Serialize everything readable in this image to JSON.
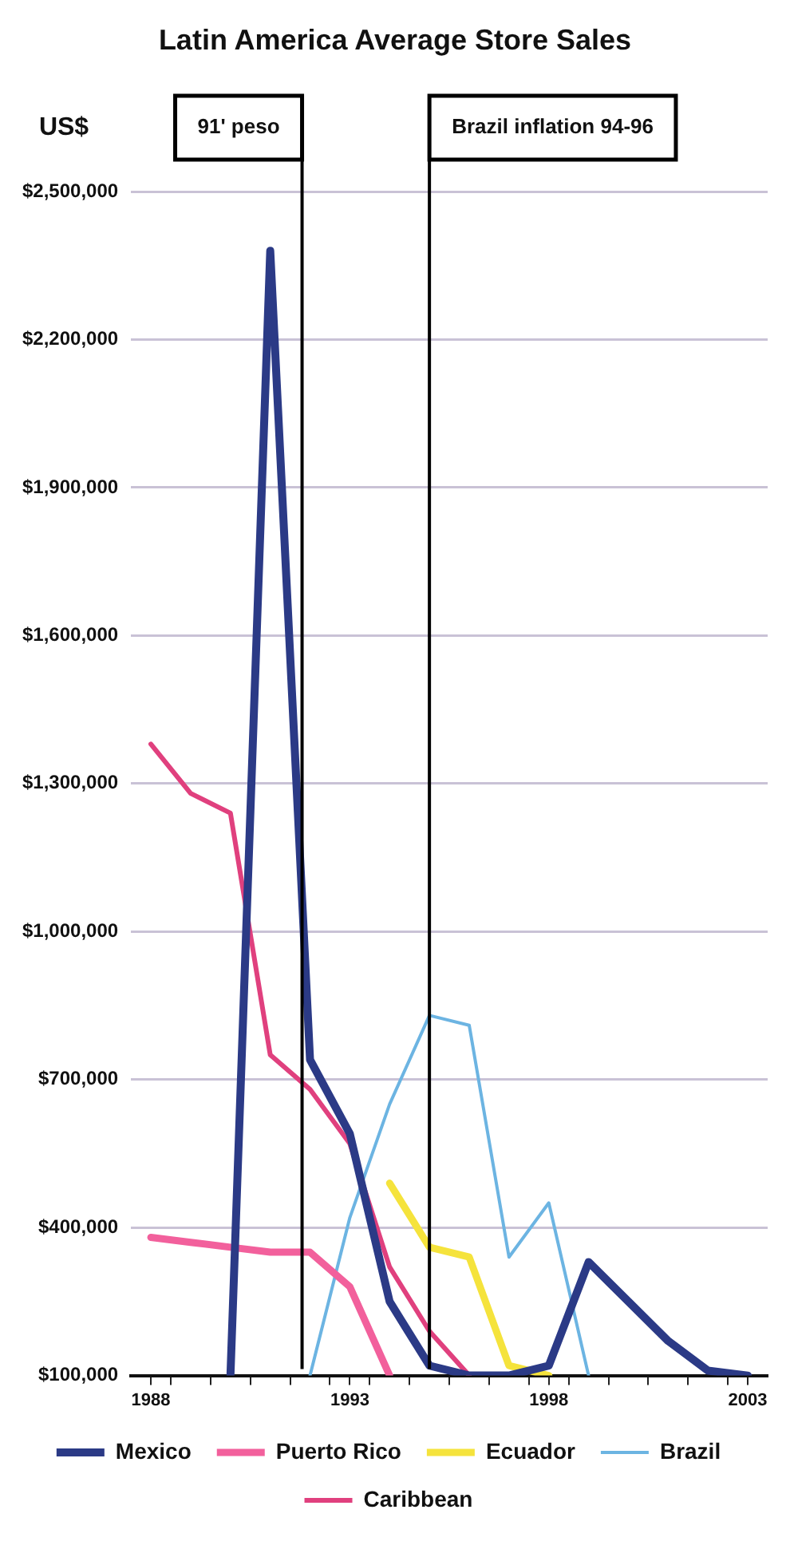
{
  "chart_data": {
    "type": "line",
    "title": "Latin America Average Store Sales",
    "ylabel": "US$",
    "x": [
      1988,
      1989,
      1990,
      1991,
      1992,
      1993,
      1994,
      1995,
      1996,
      1997,
      1998,
      1999,
      2000,
      2001,
      2002,
      2003
    ],
    "series": [
      {
        "name": "Mexico",
        "color": "#2b3a86",
        "values": [
          null,
          null,
          100000,
          2380000,
          740000,
          590000,
          250000,
          120000,
          100000,
          100000,
          120000,
          330000,
          250000,
          170000,
          110000,
          100000
        ]
      },
      {
        "name": "Puerto Rico",
        "color": "#f2609c",
        "values": [
          380000,
          370000,
          360000,
          350000,
          350000,
          280000,
          100000,
          null,
          null,
          null,
          null,
          null,
          null,
          null,
          null,
          null
        ]
      },
      {
        "name": "Ecuador",
        "color": "#f5e33c",
        "values": [
          null,
          null,
          null,
          null,
          null,
          null,
          490000,
          360000,
          340000,
          120000,
          100000,
          null,
          null,
          null,
          null,
          null
        ]
      },
      {
        "name": "Brazil",
        "color": "#6cb4e2",
        "values": [
          null,
          null,
          null,
          null,
          100000,
          420000,
          650000,
          830000,
          810000,
          340000,
          450000,
          100000,
          null,
          null,
          null,
          null
        ]
      },
      {
        "name": "Caribbean",
        "color": "#e0407e",
        "values": [
          1380000,
          1280000,
          1240000,
          750000,
          680000,
          570000,
          320000,
          190000,
          100000,
          null,
          null,
          null,
          null,
          null,
          null,
          null
        ]
      }
    ],
    "xlim": [
      1987.5,
      2003.5
    ],
    "xticks": [
      1988,
      {
        "value": 1988.5,
        "label": null
      },
      {
        "value": 1989.5,
        "label": null
      },
      {
        "value": 1990.5,
        "label": null
      },
      {
        "value": 1991.5,
        "label": null
      },
      {
        "value": 1992.5,
        "label": null
      },
      1993,
      {
        "value": 1993.5,
        "label": null
      },
      {
        "value": 1994.5,
        "label": null
      },
      {
        "value": 1995.5,
        "label": null
      },
      {
        "value": 1996.5,
        "label": null
      },
      {
        "value": 1997.5,
        "label": null
      },
      1998,
      {
        "value": 1998.5,
        "label": null
      },
      {
        "value": 1999.5,
        "label": null
      },
      {
        "value": 2000.5,
        "label": null
      },
      {
        "value": 2001.5,
        "label": null
      },
      {
        "value": 2002.5,
        "label": null
      },
      2003
    ],
    "ylim": [
      100000,
      2500000
    ],
    "yticks": [
      {
        "value": 100000,
        "label": "$100,000"
      },
      {
        "value": 400000,
        "label": "$400,000"
      },
      {
        "value": 700000,
        "label": "$700,000"
      },
      {
        "value": 1000000,
        "label": "$1,000,000"
      },
      {
        "value": 1300000,
        "label": "$1,300,000"
      },
      {
        "value": 1600000,
        "label": "$1,600,000"
      },
      {
        "value": 1900000,
        "label": "$1,900,000"
      },
      {
        "value": 2200000,
        "label": "$2,200,000"
      },
      {
        "value": 2500000,
        "label": "$2,500,000"
      }
    ],
    "ref_lines": [
      {
        "axis": "x",
        "value": 1991.8,
        "label": "91' peso"
      },
      {
        "axis": "x",
        "value": 1995,
        "label": "Brazil inflation 94-96"
      }
    ],
    "grid": "y",
    "legend": "bottom",
    "marker": "none",
    "line_style": "solid"
  }
}
